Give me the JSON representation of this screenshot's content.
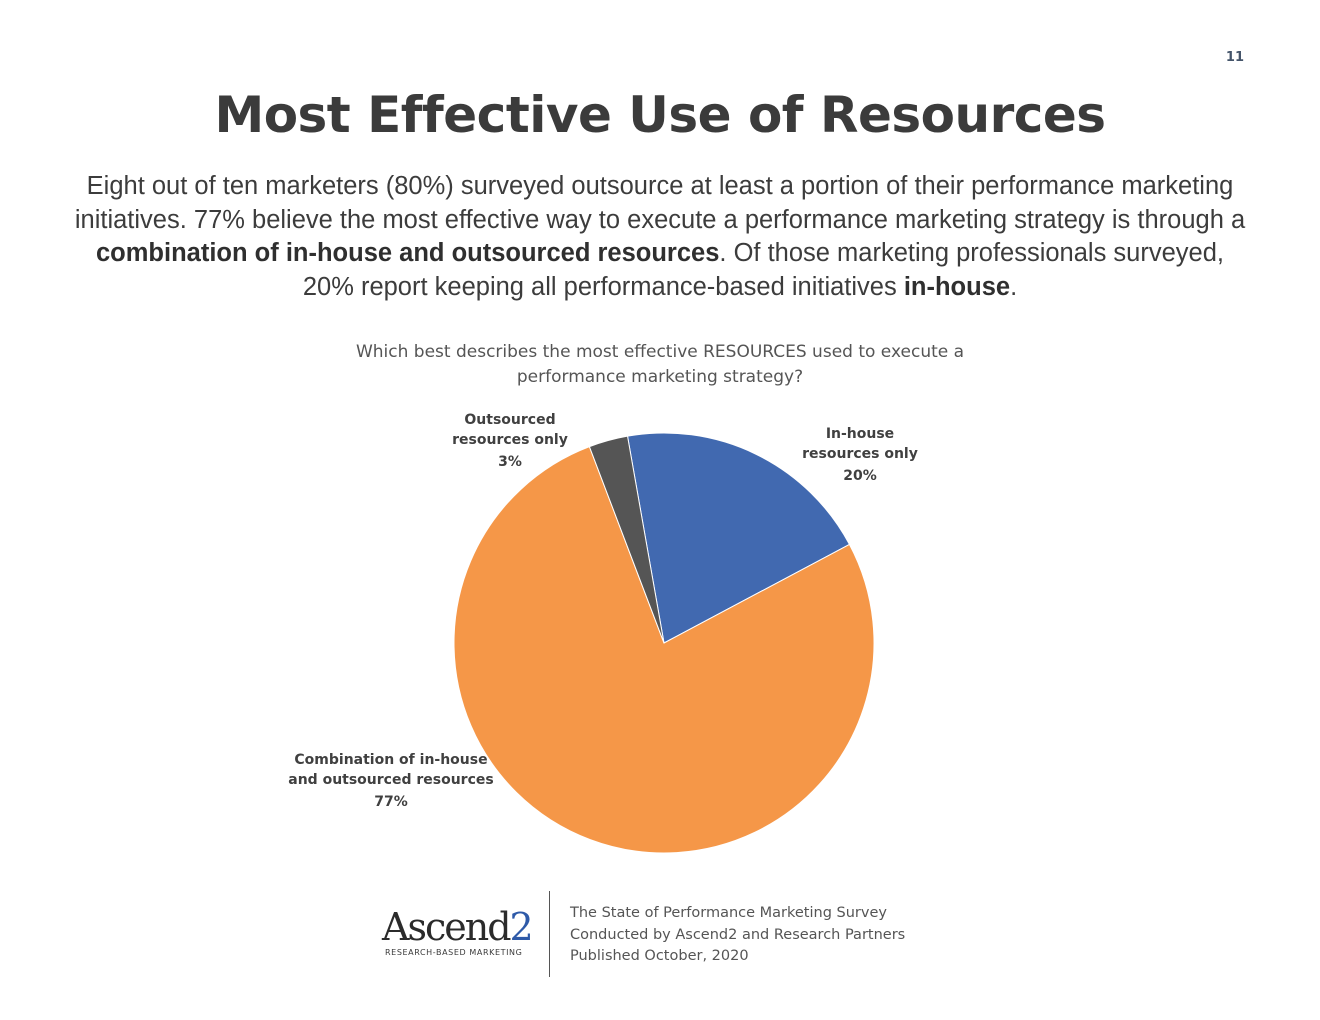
{
  "page_number": "11",
  "title": "Most Effective Use of Resources",
  "intro": {
    "part1": "Eight out of ten marketers (80%) surveyed outsource at least a portion of their performance marketing initiatives. 77% believe the most effective way to execute a performance marketing strategy is through a ",
    "bold1": "combination of in-house and outsourced resources",
    "part2": ". Of those marketing professionals surveyed, 20% report keeping all performance-based initiatives ",
    "bold2": "in-house",
    "part3": "."
  },
  "chart_data": {
    "type": "pie",
    "title": "Which best describes the most effective RESOURCES used to execute a performance marketing strategy?",
    "start_angle_deg": -10,
    "slices": [
      {
        "label": "In-house resources only",
        "label_lines": [
          "In-house",
          "resources only"
        ],
        "value": 20,
        "value_label": "20%",
        "color": "#4169b0"
      },
      {
        "label": "Combination of in-house and outsourced resources",
        "label_lines": [
          "Combination of in-house",
          "and outsourced resources"
        ],
        "value": 77,
        "value_label": "77%",
        "color": "#f59748"
      },
      {
        "label": "Outsourced resources only",
        "label_lines": [
          "Outsourced",
          "resources only"
        ],
        "value": 3,
        "value_label": "3%",
        "color": "#555555"
      }
    ]
  },
  "footer": {
    "logo_text": "Ascend",
    "logo_accent": "2",
    "logo_tagline": "RESEARCH-BASED MARKETING",
    "lines": [
      "The State of Performance Marketing Survey",
      "Conducted by Ascend2 and Research Partners",
      "Published October, 2020"
    ]
  }
}
